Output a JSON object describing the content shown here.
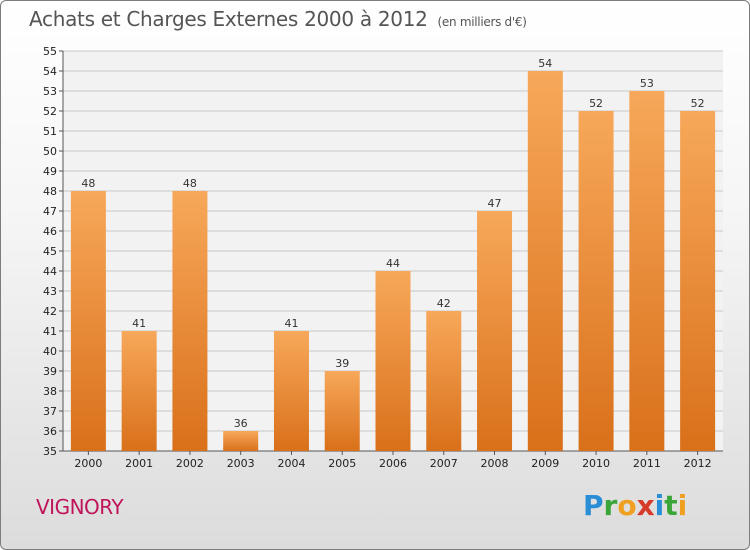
{
  "title": "Achats et Charges Externes 2000 à 2012",
  "unit": "(en milliers d'€)",
  "commune": "VIGNORY",
  "logo": {
    "letters": [
      {
        "ch": "P",
        "color": "#2a8ed6"
      },
      {
        "ch": "r",
        "color": "#3aa63a"
      },
      {
        "ch": "o",
        "color": "#f0a020"
      },
      {
        "ch": "x",
        "color": "#d63a2a"
      },
      {
        "ch": "i",
        "color": "#2a8ed6"
      },
      {
        "ch": "t",
        "color": "#3aa63a"
      },
      {
        "ch": "i",
        "color": "#f0a020"
      }
    ]
  },
  "chart_data": {
    "type": "bar",
    "categories": [
      "2000",
      "2001",
      "2002",
      "2003",
      "2004",
      "2005",
      "2006",
      "2007",
      "2008",
      "2009",
      "2010",
      "2011",
      "2012"
    ],
    "values": [
      48,
      41,
      48,
      36,
      41,
      39,
      44,
      42,
      47,
      54,
      52,
      53,
      52
    ],
    "ylim": [
      35,
      55
    ],
    "yticks": [
      35,
      36,
      37,
      38,
      39,
      40,
      41,
      42,
      43,
      44,
      45,
      46,
      47,
      48,
      49,
      50,
      51,
      52,
      53,
      54,
      55
    ],
    "grid": true,
    "bar_color_top": "#f7a85a",
    "bar_color_bottom": "#d9701a"
  }
}
